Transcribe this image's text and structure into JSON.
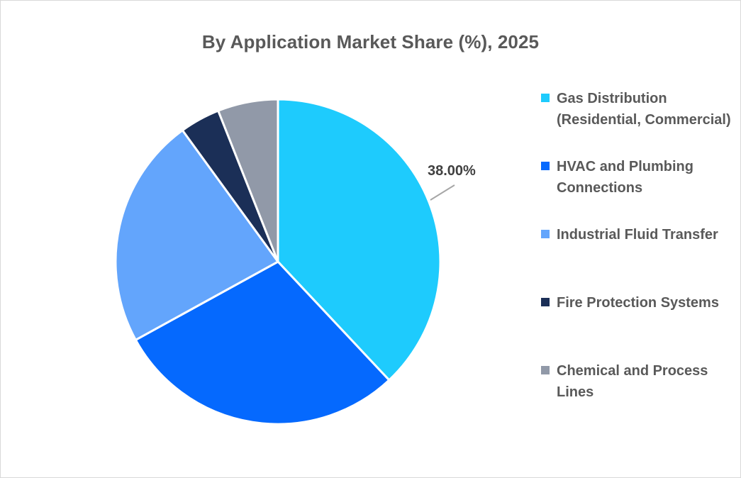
{
  "chart_data": {
    "type": "pie",
    "title": "By Application Market Share (%), 2025",
    "categories": [
      "Gas Distribution (Residential, Commercial)",
      "HVAC and Plumbing Connections",
      "Industrial Fluid Transfer",
      "Fire Protection Systems",
      "Chemical and Process Lines"
    ],
    "values": [
      38.0,
      29.0,
      23.0,
      4.0,
      6.0
    ],
    "colors": [
      "#1ecbfd",
      "#0569fe",
      "#63a5fc",
      "#1b2f57",
      "#9199a8"
    ],
    "data_labels": [
      {
        "index": 0,
        "text": "38.00%"
      }
    ],
    "legend_position": "right",
    "start_angle_deg": 0,
    "direction": "clockwise"
  },
  "title": "By Application Market Share (%), 2025",
  "legend": {
    "items": [
      {
        "label": "Gas Distribution (Residential, Commercial)",
        "color": "#1ecbfd"
      },
      {
        "label": "HVAC and Plumbing Connections",
        "color": "#0569fe"
      },
      {
        "label": "Industrial Fluid Transfer",
        "color": "#63a5fc"
      },
      {
        "label": "Fire Protection Systems",
        "color": "#1b2f57"
      },
      {
        "label": "Chemical and Process Lines",
        "color": "#9199a8"
      }
    ]
  },
  "data_label": "38.00%"
}
